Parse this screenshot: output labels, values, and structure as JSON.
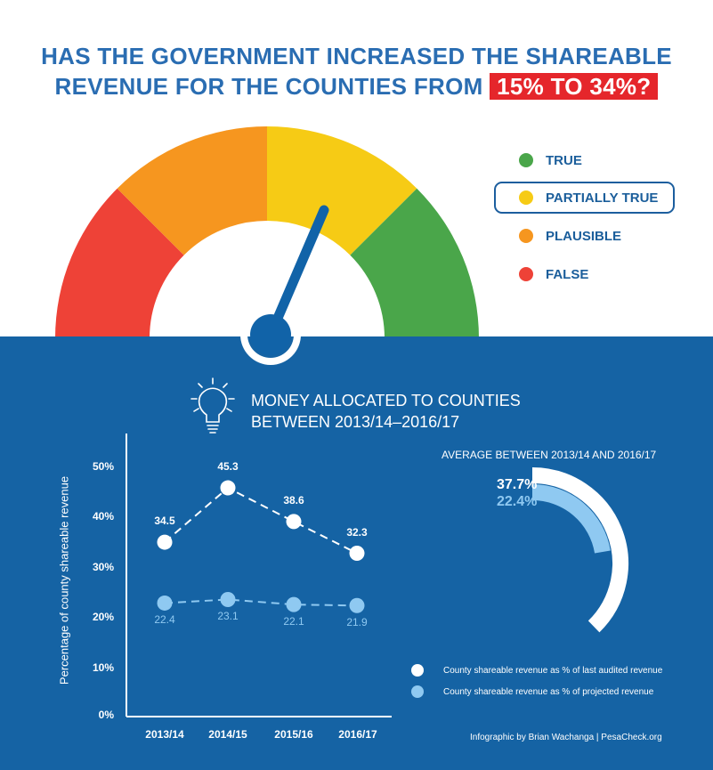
{
  "header": {
    "title_line1": "HAS THE GOVERNMENT INCREASED THE SHAREABLE",
    "title_line2": "REVENUE FOR THE COUNTIES FROM",
    "title_highlight": "15% TO 34%?"
  },
  "gauge": {
    "segment_colors": [
      "#ee4237",
      "#f6961f",
      "#f6cb15",
      "#4aa64a"
    ],
    "needle_color": "#1163a8",
    "verdict": "PARTIALLY TRUE"
  },
  "verdict_legend": [
    {
      "label": "TRUE",
      "color": "#4aa64a"
    },
    {
      "label": "PARTIALLY TRUE",
      "color": "#f6cb15"
    },
    {
      "label": "PLAUSIBLE",
      "color": "#f6961f"
    },
    {
      "label": "FALSE",
      "color": "#ee4237"
    }
  ],
  "section": {
    "title_line1": "MONEY ALLOCATED TO COUNTIES",
    "title_line2": "BETWEEN 2013/14–2016/17",
    "icon": "lightbulb-icon"
  },
  "average": {
    "title": "AVERAGE BETWEEN 2013/14 AND 2016/17",
    "audited_label": "37.7%",
    "projected_label": "22.4%",
    "audited_value": 37.7,
    "projected_value": 22.4
  },
  "legend": {
    "audited": "County shareable revenue as % of last audited revenue",
    "projected": "County shareable revenue as % of projected revenue"
  },
  "credit": "Infographic by Brian Wachanga | PesaCheck.org",
  "colors": {
    "panel": "#1563a4",
    "audited": "#ffffff",
    "projected": "#8fc9f1",
    "title": "#2a6db2",
    "highlight": "#e5262b"
  },
  "chart_data": {
    "type": "line",
    "categories": [
      "2013/14",
      "2014/15",
      "2015/16",
      "2016/17"
    ],
    "series": [
      {
        "values": [
          34.5,
          45.3,
          38.6,
          32.3
        ],
        "labels": [
          "34.5",
          "45.3",
          "38.6",
          "32.3"
        ],
        "style": "dashed",
        "color": "#ffffff"
      },
      {
        "values": [
          22.4,
          23.1,
          22.1,
          21.9
        ],
        "labels": [
          "22.4",
          "23.1",
          "22.1",
          "21.9"
        ],
        "style": "dashed",
        "color": "#8fc9f1"
      }
    ],
    "yticks": [
      "50%",
      "40%",
      "30%",
      "20%",
      "10%",
      "0%"
    ],
    "ylabel": "Percentage of county shareable revenue",
    "xlabel": "",
    "ylim": [
      0,
      50
    ]
  }
}
